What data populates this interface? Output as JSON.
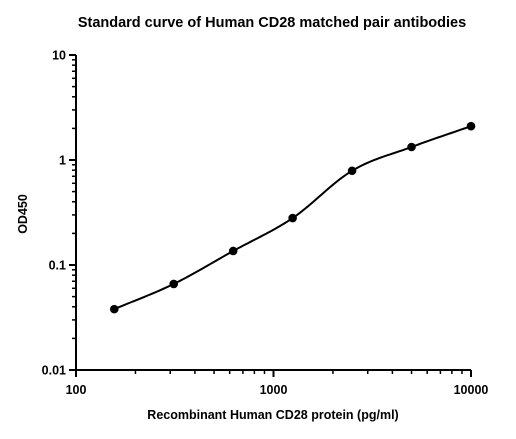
{
  "chart_data": {
    "type": "scatter",
    "title": "Standard curve of Human CD28 matched pair antibodies",
    "xlabel": "Recombinant Human CD28 protein (pg/ml)",
    "ylabel": "OD450",
    "xscale": "log",
    "yscale": "log",
    "xlim": [
      100,
      10000
    ],
    "ylim": [
      0.01,
      10
    ],
    "xticks": [
      {
        "value": 100,
        "label": "100"
      },
      {
        "value": 1000,
        "label": "1000"
      },
      {
        "value": 10000,
        "label": "10000"
      }
    ],
    "yticks": [
      {
        "value": 0.01,
        "label": "0.01"
      },
      {
        "value": 0.1,
        "label": "0.1"
      },
      {
        "value": 1,
        "label": "1"
      },
      {
        "value": 10,
        "label": "10"
      }
    ],
    "grid": false,
    "legend": "none",
    "series": [
      {
        "points": [
          {
            "x": 156.25,
            "y": 0.038
          },
          {
            "x": 312.5,
            "y": 0.066
          },
          {
            "x": 625,
            "y": 0.136
          },
          {
            "x": 1250,
            "y": 0.28
          },
          {
            "x": 2500,
            "y": 0.79
          },
          {
            "x": 5000,
            "y": 1.33
          },
          {
            "x": 10000,
            "y": 2.1
          }
        ],
        "fit": "four-parameter logistic"
      }
    ],
    "colors": {
      "points": "#000000",
      "line": "#000000"
    }
  }
}
